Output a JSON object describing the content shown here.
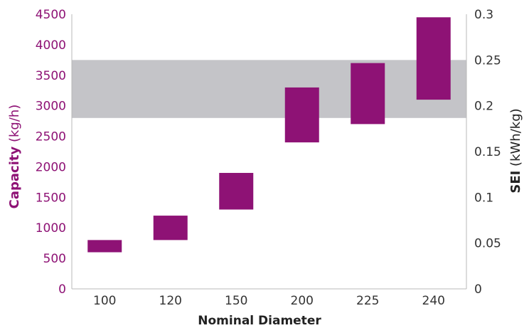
{
  "chart_data": {
    "type": "bar",
    "categories": [
      "100",
      "120",
      "150",
      "200",
      "225",
      "240"
    ],
    "series": [
      {
        "low": [
          600,
          800,
          1300,
          2400,
          2700,
          3100
        ],
        "high": [
          800,
          1200,
          1900,
          3300,
          3700,
          4450
        ]
      }
    ],
    "band": {
      "low": 2800,
      "high": 3750
    },
    "xlabel": "Nominal Diameter",
    "ylabel": {
      "bold": "Capacity",
      "unit": " (kg/h)"
    },
    "y2label": {
      "bold": "SEI",
      "unit": " (kWh/kg)"
    },
    "ylim": [
      0,
      4500
    ],
    "y2lim": [
      0,
      0.3
    ],
    "yticks": [
      "0",
      "500",
      "1000",
      "1500",
      "2000",
      "2500",
      "3000",
      "3500",
      "4000",
      "4500"
    ],
    "y2ticks": [
      "0",
      "0.05",
      "0.1",
      "0.15",
      "0.2",
      "0.25",
      "0.3"
    ],
    "colors": {
      "bar": "#8e1275",
      "band": "#c4c4c8",
      "axis": "#b8b8b8",
      "left_text": "#8e1275",
      "right_text": "#333333"
    }
  }
}
